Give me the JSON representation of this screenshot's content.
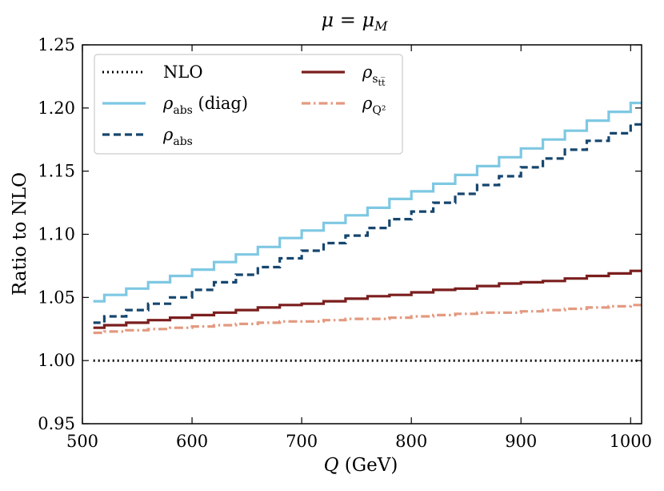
{
  "chart_data": {
    "type": "line",
    "title": "μ = μ_M",
    "xlabel": "Q (GeV)",
    "ylabel": "Ratio to NLO",
    "xlim": [
      500,
      1010
    ],
    "ylim": [
      0.95,
      1.25
    ],
    "x_ticks": [
      500,
      600,
      700,
      800,
      900,
      1000
    ],
    "y_ticks": [
      0.95,
      1.0,
      1.05,
      1.1,
      1.15,
      1.2,
      1.25
    ],
    "x_tick_labels": [
      "500",
      "600",
      "700",
      "800",
      "900",
      "1000"
    ],
    "y_tick_labels": [
      "0.95",
      "1.00",
      "1.05",
      "1.10",
      "1.15",
      "1.20",
      "1.25"
    ],
    "grid": false,
    "legend_position": "top-left",
    "step_edges": [
      510,
      520,
      540,
      560,
      580,
      600,
      620,
      640,
      660,
      680,
      700,
      720,
      740,
      760,
      780,
      800,
      820,
      840,
      860,
      880,
      900,
      920,
      940,
      960,
      980,
      1000,
      1010
    ],
    "series": [
      {
        "name": "NLO",
        "legend_main": "NLO",
        "legend_sub": "",
        "legend_extra": "",
        "color": "#000000",
        "style": "dotted",
        "values": [
          1.0,
          1.0,
          1.0,
          1.0,
          1.0,
          1.0,
          1.0,
          1.0,
          1.0,
          1.0,
          1.0,
          1.0,
          1.0,
          1.0,
          1.0,
          1.0,
          1.0,
          1.0,
          1.0,
          1.0,
          1.0,
          1.0,
          1.0,
          1.0,
          1.0,
          1.0
        ]
      },
      {
        "name": "ρ_abs (diag)",
        "legend_main": "ρ",
        "legend_sub": "abs",
        "legend_extra": "(diag)",
        "color": "#7ec8e3",
        "style": "solid",
        "values": [
          1.047,
          1.052,
          1.057,
          1.062,
          1.067,
          1.072,
          1.078,
          1.084,
          1.09,
          1.097,
          1.103,
          1.109,
          1.115,
          1.121,
          1.128,
          1.134,
          1.14,
          1.147,
          1.154,
          1.161,
          1.168,
          1.175,
          1.182,
          1.19,
          1.197,
          1.204
        ]
      },
      {
        "name": "ρ_abs",
        "legend_main": "ρ",
        "legend_sub": "abs",
        "legend_extra": "",
        "color": "#16466e",
        "style": "dashed",
        "values": [
          1.03,
          1.035,
          1.04,
          1.045,
          1.05,
          1.056,
          1.062,
          1.068,
          1.074,
          1.081,
          1.087,
          1.093,
          1.099,
          1.105,
          1.112,
          1.118,
          1.125,
          1.132,
          1.139,
          1.146,
          1.153,
          1.16,
          1.167,
          1.174,
          1.18,
          1.187
        ]
      },
      {
        "name": "ρ_{s_{t t̅}}",
        "legend_main": "ρ",
        "legend_sub": "s",
        "legend_subsub": "tt̅",
        "legend_extra": "",
        "color": "#7b1e1e",
        "style": "solid",
        "values": [
          1.026,
          1.028,
          1.03,
          1.032,
          1.034,
          1.036,
          1.038,
          1.04,
          1.042,
          1.044,
          1.045,
          1.047,
          1.049,
          1.051,
          1.052,
          1.054,
          1.056,
          1.057,
          1.059,
          1.061,
          1.062,
          1.063,
          1.065,
          1.067,
          1.069,
          1.071
        ]
      },
      {
        "name": "ρ_{Q²}",
        "legend_main": "ρ",
        "legend_sub": "Q²",
        "legend_extra": "",
        "color": "#e39a80",
        "style": "dashdot",
        "values": [
          1.022,
          1.023,
          1.024,
          1.025,
          1.026,
          1.027,
          1.028,
          1.029,
          1.03,
          1.031,
          1.031,
          1.032,
          1.033,
          1.033,
          1.034,
          1.035,
          1.036,
          1.037,
          1.038,
          1.038,
          1.039,
          1.04,
          1.041,
          1.042,
          1.043,
          1.044
        ]
      }
    ]
  }
}
